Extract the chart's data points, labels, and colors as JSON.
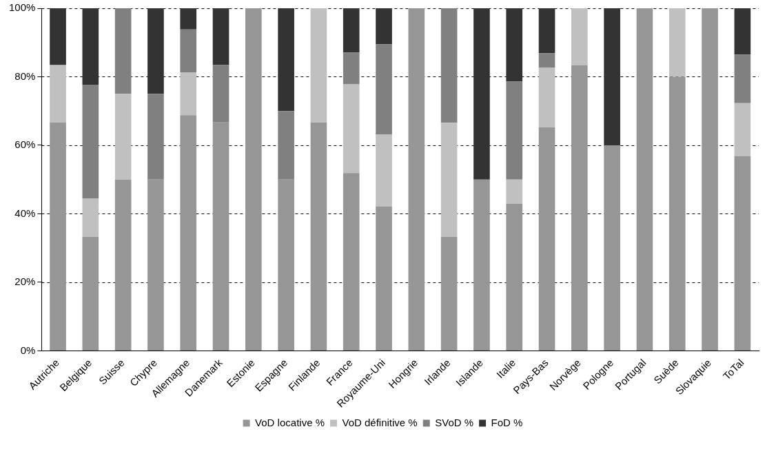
{
  "chart_data": {
    "type": "bar",
    "stacked": true,
    "grid": "y",
    "legend": "bottom",
    "categories": [
      "Autriche",
      "Belgique",
      "Suisse",
      "Chypre",
      "Allemagne",
      "Danemark",
      "Estonie",
      "Espagne",
      "Finlande",
      "France",
      "Royaume-Uni",
      "Hongrie",
      "Irlande",
      "Islande",
      "Italie",
      "Pays-Bas",
      "Norvège",
      "Pologne",
      "Portugal",
      "Suède",
      "Slovaquie",
      "ToTal"
    ],
    "ylim": [
      0,
      100
    ],
    "yticks": [
      {
        "value": 0,
        "label": "0%"
      },
      {
        "value": 20,
        "label": "20%"
      },
      {
        "value": 40,
        "label": "40%"
      },
      {
        "value": 60,
        "label": "60%"
      },
      {
        "value": 80,
        "label": "80%"
      },
      {
        "value": 100,
        "label": "100%"
      }
    ],
    "series": [
      {
        "name": "VoD locative %",
        "color": "#969696",
        "values": [
          66.7,
          33.3,
          50,
          50,
          68.8,
          66.7,
          100,
          50,
          66.7,
          51.9,
          42.1,
          100,
          33.3,
          50,
          42.9,
          65.2,
          83.3,
          60,
          100,
          80,
          100,
          56.9
        ]
      },
      {
        "name": "VoD définitive %",
        "color": "#c0c0c0",
        "values": [
          16.7,
          11.1,
          25,
          0,
          12.5,
          0,
          0,
          0,
          33.3,
          25.9,
          21.1,
          0,
          33.3,
          0,
          7.1,
          17.4,
          16.7,
          0,
          0,
          20,
          0,
          15.4
        ]
      },
      {
        "name": "SVoD %",
        "color": "#808080",
        "values": [
          0,
          33.3,
          25,
          25,
          12.5,
          16.7,
          0,
          20,
          0,
          9.3,
          26.3,
          0,
          33.4,
          0,
          28.6,
          4.3,
          0,
          0,
          0,
          0,
          0,
          14.2
        ]
      },
      {
        "name": "FoD %",
        "color": "#333333",
        "values": [
          16.6,
          22.3,
          0,
          25,
          6.2,
          16.6,
          0,
          30,
          0,
          12.9,
          10.5,
          0,
          0,
          50,
          21.4,
          13.1,
          0,
          40,
          0,
          0,
          0,
          13.5
        ]
      }
    ]
  }
}
